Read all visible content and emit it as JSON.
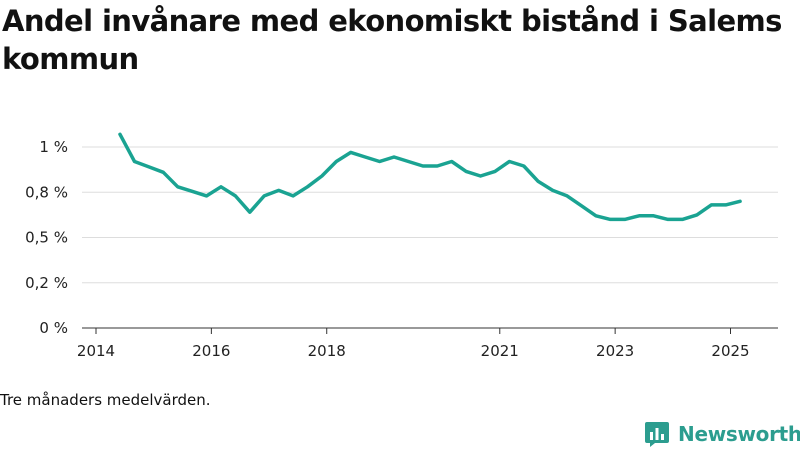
{
  "title": "Andel invånare med ekonomiskt bistånd i Salems kommun",
  "footnote": "Tre månaders medelvärden.",
  "brand": {
    "name": "Newsworthy",
    "color": "#2c9d8f"
  },
  "chart_data": {
    "type": "line",
    "title": "Andel invånare med ekonomiskt bistånd i Salems kommun",
    "xlabel": "",
    "ylabel": "",
    "x_ticks": [
      "2014",
      "2016",
      "2018",
      "2021",
      "2023",
      "2025"
    ],
    "y_ticks": [
      {
        "value": 0,
        "label": "0 %"
      },
      {
        "value": 0.25,
        "label": "0,2 %"
      },
      {
        "value": 0.5,
        "label": "0,5 %"
      },
      {
        "value": 0.75,
        "label": "0,8 %"
      },
      {
        "value": 1.0,
        "label": "1 %"
      }
    ],
    "ylim": [
      0,
      1.0
    ],
    "grid": true,
    "line_color": "#1aa392",
    "series": [
      {
        "values": [
          [
            "2014-06",
            1.07
          ],
          [
            "2014-09",
            0.92
          ],
          [
            "2014-12",
            0.89
          ],
          [
            "2015-03",
            0.86
          ],
          [
            "2015-06",
            0.78
          ],
          [
            "2015-09",
            0.755
          ],
          [
            "2015-12",
            0.73
          ],
          [
            "2016-03",
            0.78
          ],
          [
            "2016-06",
            0.73
          ],
          [
            "2016-09",
            0.64
          ],
          [
            "2016-12",
            0.73
          ],
          [
            "2017-03",
            0.76
          ],
          [
            "2017-06",
            0.73
          ],
          [
            "2017-09",
            0.78
          ],
          [
            "2017-12",
            0.84
          ],
          [
            "2018-03",
            0.92
          ],
          [
            "2018-06",
            0.97
          ],
          [
            "2018-09",
            0.945
          ],
          [
            "2018-12",
            0.92
          ],
          [
            "2019-03",
            0.945
          ],
          [
            "2019-06",
            0.92
          ],
          [
            "2019-09",
            0.895
          ],
          [
            "2019-12",
            0.895
          ],
          [
            "2020-03",
            0.92
          ],
          [
            "2020-06",
            0.865
          ],
          [
            "2020-09",
            0.84
          ],
          [
            "2020-12",
            0.865
          ],
          [
            "2021-03",
            0.92
          ],
          [
            "2021-06",
            0.895
          ],
          [
            "2021-09",
            0.81
          ],
          [
            "2021-12",
            0.76
          ],
          [
            "2022-03",
            0.73
          ],
          [
            "2022-06",
            0.675
          ],
          [
            "2022-09",
            0.62
          ],
          [
            "2022-12",
            0.6
          ],
          [
            "2023-03",
            0.6
          ],
          [
            "2023-06",
            0.62
          ],
          [
            "2023-09",
            0.62
          ],
          [
            "2023-12",
            0.6
          ],
          [
            "2024-03",
            0.6
          ],
          [
            "2024-06",
            0.625
          ],
          [
            "2024-09",
            0.68
          ],
          [
            "2024-12",
            0.68
          ],
          [
            "2025-03",
            0.7
          ]
        ]
      }
    ]
  }
}
